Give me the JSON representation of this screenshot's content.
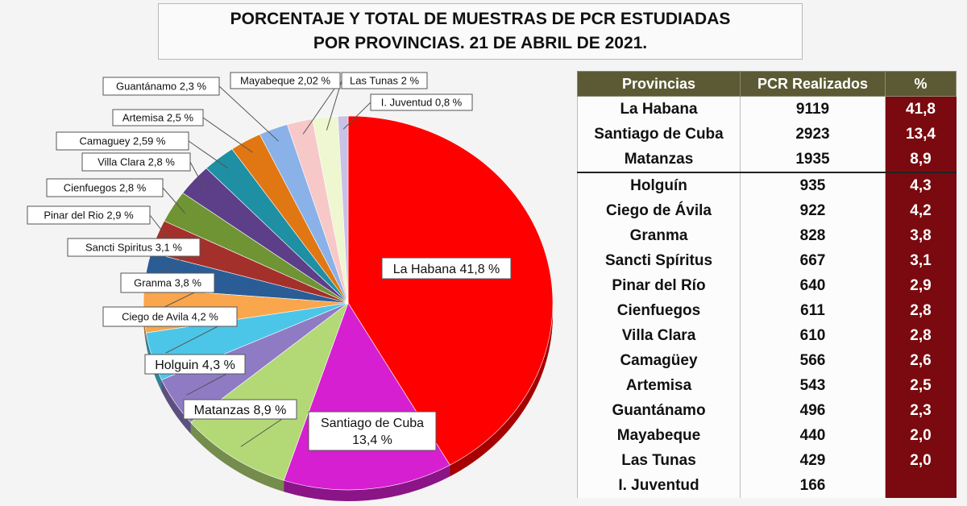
{
  "title": {
    "line1": "PORCENTAJE Y TOTAL DE MUESTRAS DE PCR ESTUDIADAS",
    "line2": "POR PROVINCIAS. 21 DE ABRIL DE 2021."
  },
  "chart_data": {
    "type": "pie",
    "slices": [
      {
        "label": "La Habana 41,8 %",
        "value": 41.8,
        "color": "#ff0000"
      },
      {
        "label": "Santiago de Cuba 13,4 %",
        "value": 13.4,
        "color": "#d61fd0"
      },
      {
        "label": "Matanzas 8,9 %",
        "value": 8.9,
        "color": "#b3d977"
      },
      {
        "label": "Holguin 4,3 %",
        "value": 4.3,
        "color": "#8f7bc4"
      },
      {
        "label": "Ciego de Avila 4,2 %",
        "value": 4.2,
        "color": "#4cc6e8"
      },
      {
        "label": "Granma 3,8 %",
        "value": 3.8,
        "color": "#f9a64c"
      },
      {
        "label": "Sancti Spiritus 3,1 %",
        "value": 3.1,
        "color": "#2a5d96"
      },
      {
        "label": "Pinar del Rio 2,9 %",
        "value": 2.9,
        "color": "#a4302c"
      },
      {
        "label": "Cienfuegos 2,8 %",
        "value": 2.8,
        "color": "#6f9433"
      },
      {
        "label": "Villa Clara 2,8 %",
        "value": 2.8,
        "color": "#5c3f88"
      },
      {
        "label": "Camaguey 2,59 %",
        "value": 2.59,
        "color": "#1f8fa3"
      },
      {
        "label": "Artemisa 2,5 %",
        "value": 2.5,
        "color": "#e07712"
      },
      {
        "label": "Guantánamo 2,3 %",
        "value": 2.3,
        "color": "#8ab1e8"
      },
      {
        "label": "Mayabeque 2,02 %",
        "value": 2.02,
        "color": "#f7c8c8"
      },
      {
        "label": "Las Tunas 2 %",
        "value": 2.0,
        "color": "#eef7cf"
      },
      {
        "label": "I. Juventud 0,8 %",
        "value": 0.8,
        "color": "#c9c1e6"
      }
    ]
  },
  "table": {
    "headers": [
      "Provincias",
      "PCR Realizados",
      "%"
    ],
    "rows": [
      {
        "provincia": "La Habana",
        "pcr": "9119",
        "pct": "41,8"
      },
      {
        "provincia": "Santiago de Cuba",
        "pcr": "2923",
        "pct": "13,4"
      },
      {
        "provincia": "Matanzas",
        "pcr": "1935",
        "pct": "8,9"
      },
      {
        "provincia": "Holguín",
        "pcr": "935",
        "pct": "4,3"
      },
      {
        "provincia": "Ciego de Ávila",
        "pcr": "922",
        "pct": "4,2"
      },
      {
        "provincia": "Granma",
        "pcr": "828",
        "pct": "3,8"
      },
      {
        "provincia": "Sancti Spíritus",
        "pcr": "667",
        "pct": "3,1"
      },
      {
        "provincia": "Pinar del Río",
        "pcr": "640",
        "pct": "2,9"
      },
      {
        "provincia": "Cienfuegos",
        "pcr": "611",
        "pct": "2,8"
      },
      {
        "provincia": "Villa Clara",
        "pcr": "610",
        "pct": "2,8"
      },
      {
        "provincia": "Camagüey",
        "pcr": "566",
        "pct": "2,6"
      },
      {
        "provincia": "Artemisa",
        "pcr": "543",
        "pct": "2,5"
      },
      {
        "provincia": "Guantánamo",
        "pcr": "496",
        "pct": "2,3"
      },
      {
        "provincia": "Mayabeque",
        "pcr": "440",
        "pct": "2,0"
      },
      {
        "provincia": "Las Tunas",
        "pcr": "429",
        "pct": "2,0"
      },
      {
        "provincia": "I. Juventud",
        "pcr": "166",
        "pct": ""
      }
    ]
  }
}
